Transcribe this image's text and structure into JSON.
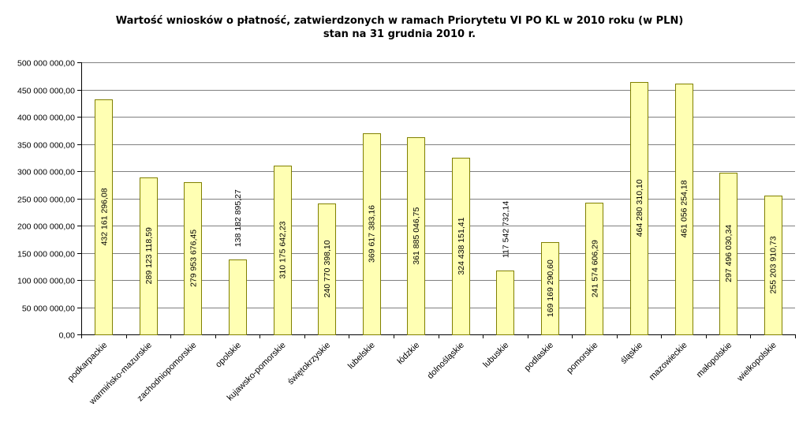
{
  "chart_data": {
    "type": "bar",
    "title": "Wartość wniosków o płatność, zatwierdzonych w ramach Priorytetu VI PO KL w 2010 roku (w PLN)",
    "subtitle": "stan na 31 grudnia 2010 r.",
    "categories": [
      "podkarpackie",
      "warmińsko-mazurskie",
      "zachodniopomorskie",
      "opolskie",
      "kujawsko-pomorskie",
      "świętokrzyskie",
      "lubelskie",
      "łódzkie",
      "dolnośląskie",
      "lubuskie",
      "podlaskie",
      "pomorskie",
      "śląskie",
      "mazowieckie",
      "małopolskie",
      "wielkopolskie"
    ],
    "values": [
      432161296.08,
      289123118.59,
      279953676.45,
      138182895.27,
      310175642.23,
      240770398.1,
      369617383.16,
      361885046.75,
      324438151.41,
      117542732.14,
      169169290.6,
      241574606.29,
      464280310.1,
      461056254.18,
      297496030.34,
      255203910.73
    ],
    "value_labels": [
      "432 161 296,08",
      "289 123 118,59",
      "279 953 676,45",
      "138 182 895,27",
      "310 175 642,23",
      "240 770 398,10",
      "369 617 383,16",
      "361 885 046,75",
      "324 438 151,41",
      "117 542 732,14",
      "169 169 290,60",
      "241 574 606,29",
      "464 280 310,10",
      "461 056 254,18",
      "297 496 030,34",
      "255 203 910,73"
    ],
    "ylim": [
      0,
      500000000
    ],
    "yticks": [
      {
        "value": 0,
        "label": "0,00"
      },
      {
        "value": 50000000,
        "label": "50 000 000,00"
      },
      {
        "value": 100000000,
        "label": "100 000 000,00"
      },
      {
        "value": 150000000,
        "label": "150 000 000,00"
      },
      {
        "value": 200000000,
        "label": "200 000 000,00"
      },
      {
        "value": 250000000,
        "label": "250 000 000,00"
      },
      {
        "value": 300000000,
        "label": "300 000 000,00"
      },
      {
        "value": 350000000,
        "label": "350 000 000,00"
      },
      {
        "value": 400000000,
        "label": "400 000 000,00"
      },
      {
        "value": 450000000,
        "label": "450 000 000,00"
      },
      {
        "value": 500000000,
        "label": "500 000 000,00"
      }
    ],
    "grid": true,
    "legend": "none",
    "bar_color": "#FFFFB3",
    "bar_edge_color": "#808000",
    "grid_color": "#808080"
  }
}
